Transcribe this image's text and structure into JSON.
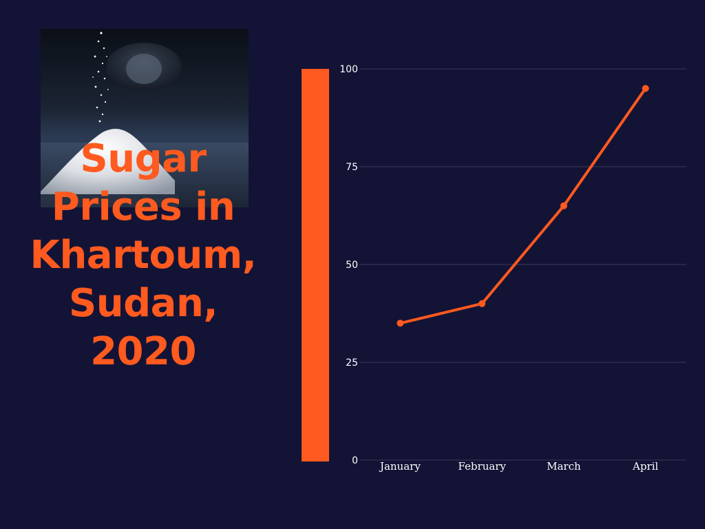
{
  "title_lines": [
    "Sugar",
    "Prices in",
    "Khartoum,",
    "Sudan,",
    "2020"
  ],
  "photo": {
    "subject": "sugar-pile-pouring-icon"
  },
  "colors": {
    "background": "#131336",
    "accent": "#ff5a1f",
    "grid": "#3a3a5c",
    "tick_text": "#ffffff"
  },
  "chart_data": {
    "type": "line",
    "title": "",
    "xlabel": "",
    "ylabel": "",
    "categories": [
      "January",
      "February",
      "March",
      "April"
    ],
    "series": [
      {
        "values": [
          35,
          40,
          65,
          95
        ]
      }
    ],
    "ylim": [
      0,
      100
    ],
    "yticks": [
      0,
      25,
      50,
      75,
      100
    ],
    "grid": true,
    "legend": "none"
  }
}
